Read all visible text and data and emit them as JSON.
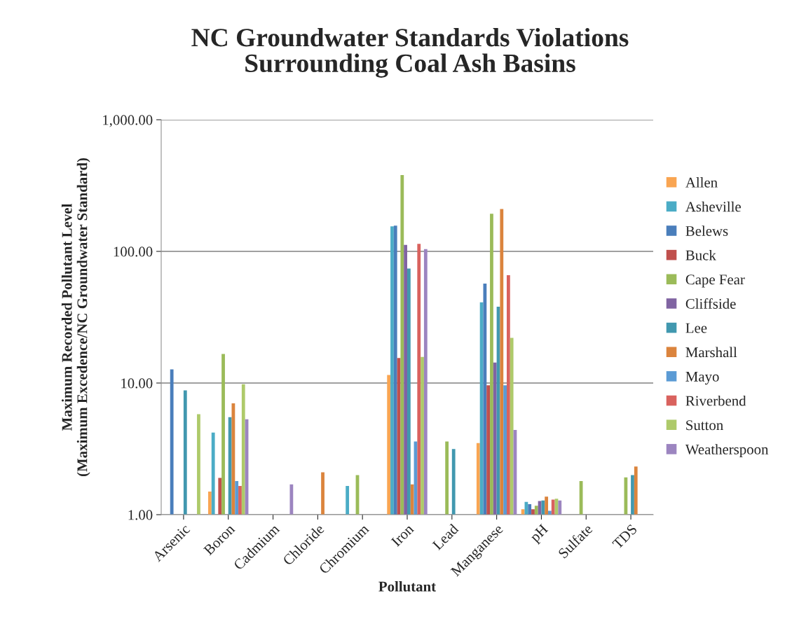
{
  "chart_data": {
    "type": "bar",
    "title": "NC Groundwater Standards Violations\nSurrounding Coal Ash Basins",
    "xlabel": "Pollutant",
    "ylabel": "Maximum Recorded Pollutant Level\n(Maximum Excedence/NC Groundwater Standard)",
    "categories": [
      "Arsenic",
      "Boron",
      "Cadmium",
      "Chloride",
      "Chromium",
      "Iron",
      "Lead",
      "Manganese",
      "pH",
      "Sulfate",
      "TDS"
    ],
    "log": "y",
    "ylim": [
      1,
      1000
    ],
    "yticks": [
      {
        "value": 1,
        "label": "1.00"
      },
      {
        "value": 10,
        "label": "10.00"
      },
      {
        "value": 100,
        "label": "100.00"
      },
      {
        "value": 1000,
        "label": "1,000.00"
      }
    ],
    "grid": "y",
    "legend": "right",
    "series": [
      {
        "name": "Allen",
        "color": "#f9a552",
        "values": [
          null,
          1.5,
          null,
          null,
          null,
          11.5,
          null,
          3.5,
          1.1,
          null,
          null
        ]
      },
      {
        "name": "Asheville",
        "color": "#4bacc6",
        "values": [
          null,
          4.2,
          null,
          null,
          1.65,
          155,
          null,
          41,
          1.25,
          null,
          null
        ]
      },
      {
        "name": "Belews",
        "color": "#4a7ebb",
        "values": [
          12.7,
          null,
          null,
          null,
          null,
          157,
          null,
          57,
          1.2,
          null,
          null
        ]
      },
      {
        "name": "Buck",
        "color": "#c0504d",
        "values": [
          null,
          1.9,
          null,
          null,
          null,
          15.5,
          null,
          9.6,
          1.1,
          null,
          null
        ]
      },
      {
        "name": "Cape Fear",
        "color": "#9bbb59",
        "values": [
          null,
          16.6,
          null,
          null,
          2.0,
          380,
          3.6,
          193,
          1.17,
          1.8,
          1.92
        ]
      },
      {
        "name": "Cliffside",
        "color": "#8064a2",
        "values": [
          null,
          null,
          null,
          null,
          null,
          112,
          null,
          14.3,
          1.27,
          null,
          null
        ]
      },
      {
        "name": "Lee",
        "color": "#4198af",
        "values": [
          8.8,
          5.5,
          null,
          null,
          null,
          74,
          3.15,
          38,
          1.28,
          null,
          2.0
        ]
      },
      {
        "name": "Marshall",
        "color": "#db843d",
        "values": [
          null,
          7.0,
          null,
          2.1,
          null,
          1.7,
          null,
          210,
          1.37,
          null,
          2.32
        ]
      },
      {
        "name": "Mayo",
        "color": "#5b9bd5",
        "values": [
          null,
          1.8,
          null,
          null,
          null,
          3.6,
          null,
          9.6,
          1.07,
          null,
          null
        ]
      },
      {
        "name": "Riverbend",
        "color": "#d9625e",
        "values": [
          null,
          1.65,
          null,
          null,
          null,
          114,
          null,
          66,
          1.3,
          null,
          null
        ]
      },
      {
        "name": "Sutton",
        "color": "#aeca6a",
        "values": [
          5.8,
          9.8,
          null,
          null,
          null,
          15.8,
          null,
          22,
          1.32,
          null,
          null
        ]
      },
      {
        "name": "Weatherspoon",
        "color": "#9c85c0",
        "values": [
          null,
          5.3,
          1.7,
          null,
          null,
          104,
          null,
          4.4,
          1.28,
          null,
          null
        ]
      }
    ]
  }
}
